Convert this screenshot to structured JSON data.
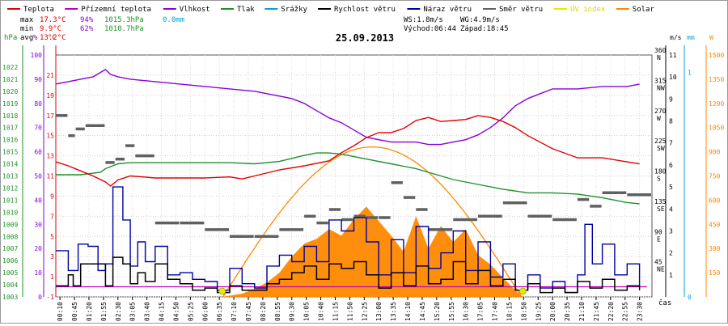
{
  "chart_data": {
    "type": "line",
    "title": "25.09.2013",
    "legend": [
      {
        "label": "Teplota",
        "color": "#e00000"
      },
      {
        "label": "Přízemní teplota",
        "color": "#c000c0"
      },
      {
        "label": "Vlhkost",
        "color": "#8a00d8"
      },
      {
        "label": "Tlak",
        "color": "#20902a"
      },
      {
        "label": "Srážky",
        "color": "#00a0d8"
      },
      {
        "label": "Rychlost větru",
        "color": "#000000"
      },
      {
        "label": "Náraz větru",
        "color": "#0000a0"
      },
      {
        "label": "Směr větru",
        "color": "#606060"
      },
      {
        "label": "UV index",
        "color": "#e8e800"
      },
      {
        "label": "Solar",
        "color": "#ff8800"
      }
    ],
    "stats": {
      "max": {
        "label": "max",
        "temp": "17.3°C",
        "hum": "94%",
        "press": "1015.3hPa",
        "rain": "0.0mm"
      },
      "min": {
        "label": "min",
        "temp": "9.9°C",
        "hum": "62%",
        "press": "1010.7hPa"
      },
      "avg": {
        "label": "avg",
        "temp": "13.2°C"
      }
    },
    "wind_info": {
      "ws": "WS:1.8m/s",
      "wg": "WG:4.9m/s",
      "sunrise": "Východ:06:44",
      "sunset": "Západ:18:45"
    },
    "axes": {
      "pressure": {
        "title": "hPa",
        "range": [
          1003,
          1023
        ],
        "ticks": [
          "1003",
          "1004",
          "1005",
          "1006",
          "1007",
          "1008",
          "1009",
          "1010",
          "1011",
          "1012",
          "1013",
          "1014",
          "1015",
          "1016",
          "1017",
          "1018",
          "1019",
          "1020",
          "1021",
          "1022"
        ]
      },
      "humidity": {
        "title": "%",
        "range": [
          0,
          100
        ],
        "ticks": [
          "0",
          "10",
          "20",
          "30",
          "40",
          "50",
          "60",
          "70",
          "80",
          "90",
          "100"
        ]
      },
      "temperature": {
        "title": "°C",
        "range": [
          -1,
          23
        ],
        "ticks": [
          "-1",
          "1",
          "3",
          "5",
          "7",
          "9",
          "11",
          "13",
          "15",
          "17",
          "19",
          "21"
        ]
      },
      "wind_direction": {
        "labels": [
          {
            "deg": 45,
            "text": "45",
            "dir": "NE"
          },
          {
            "deg": 90,
            "text": "90",
            "dir": "E"
          },
          {
            "deg": 135,
            "text": "135",
            "dir": "SE"
          },
          {
            "deg": 180,
            "text": "180",
            "dir": "S"
          },
          {
            "deg": 225,
            "text": "225",
            "dir": "SW"
          },
          {
            "deg": 270,
            "text": "270",
            "dir": "W"
          },
          {
            "deg": 315,
            "text": "315",
            "dir": "NW"
          },
          {
            "deg": 360,
            "text": "360",
            "dir": "N"
          }
        ]
      },
      "wind_speed": {
        "title": "m/s",
        "range": [
          0,
          11
        ],
        "ticks": [
          "1",
          "2",
          "3",
          "4",
          "5",
          "6",
          "7",
          "8",
          "9",
          "10",
          "11"
        ]
      },
      "rain": {
        "title": "mm",
        "ticks": [
          "0",
          "1"
        ]
      },
      "solar": {
        "title": "W",
        "range": [
          0,
          1500
        ],
        "ticks": [
          "150",
          "300",
          "450",
          "600",
          "750",
          "900",
          "1050",
          "1200",
          "1350",
          "1500"
        ]
      },
      "time": {
        "title": "čas",
        "labels": [
          "00:10",
          "00:45",
          "01:20",
          "01:55",
          "02:30",
          "03:05",
          "03:40",
          "04:15",
          "04:50",
          "05:25",
          "06:00",
          "06:35",
          "07:10",
          "07:45",
          "08:20",
          "08:55",
          "09:30",
          "10:05",
          "10:40",
          "11:15",
          "11:50",
          "12:25",
          "13:00",
          "13:35",
          "14:10",
          "14:45",
          "15:20",
          "15:55",
          "16:30",
          "17:05",
          "17:40",
          "18:15",
          "18:50",
          "19:25",
          "20:00",
          "20:35",
          "21:10",
          "21:45",
          "22:20",
          "22:55",
          "23:30"
        ]
      }
    },
    "series": {
      "temperature": {
        "hours": [
          0,
          0.5,
          1,
          1.5,
          2,
          2.2,
          2.5,
          3,
          3.5,
          4,
          5,
          6,
          7,
          7.5,
          8,
          9,
          10,
          11,
          11.5,
          12,
          12.5,
          13,
          13.5,
          14,
          14.5,
          15,
          15.5,
          16,
          16.5,
          17,
          17.5,
          18,
          18.5,
          19,
          20,
          21,
          22,
          23,
          23.5
        ],
        "values": [
          12.4,
          12.0,
          11.5,
          11.0,
          10.4,
          10.0,
          10.6,
          11.0,
          10.9,
          10.8,
          10.8,
          10.8,
          10.9,
          10.7,
          11.0,
          11.6,
          12.0,
          12.5,
          13.3,
          14.0,
          14.8,
          15.3,
          15.3,
          15.7,
          16.5,
          16.8,
          16.4,
          16.5,
          16.6,
          17.0,
          16.8,
          16.4,
          15.8,
          15.0,
          13.7,
          12.8,
          12.8,
          12.4,
          12.2
        ]
      },
      "humidity": {
        "hours": [
          0,
          0.5,
          1,
          1.5,
          2,
          2.2,
          2.5,
          3,
          4,
          5,
          6,
          7,
          8,
          8.5,
          9,
          9.5,
          10,
          10.5,
          11,
          11.5,
          12,
          12.5,
          13,
          13.5,
          14,
          14.5,
          15,
          15.5,
          16,
          16.5,
          17,
          17.5,
          18,
          18.5,
          19,
          19.5,
          20,
          21,
          22,
          23,
          23.5
        ],
        "values": [
          88,
          89,
          90,
          91,
          94,
          92,
          91,
          90,
          89,
          88,
          87,
          86,
          85,
          84,
          83,
          82,
          80,
          77,
          74,
          72,
          69,
          66,
          65,
          64,
          64,
          64,
          63,
          63,
          64,
          65,
          67,
          70,
          74,
          79,
          82,
          84,
          86,
          86,
          87,
          87,
          88
        ]
      },
      "pressure": {
        "hours": [
          0,
          1,
          1.8,
          2,
          2.5,
          3,
          4,
          5,
          6,
          7,
          8,
          9,
          10,
          10.5,
          11,
          11.5,
          12,
          12.5,
          13,
          13.5,
          14,
          14.5,
          15,
          15.5,
          16,
          17,
          18,
          19,
          20,
          21,
          22,
          22.5,
          23,
          23.5
        ],
        "values": [
          1013.1,
          1013.1,
          1013.3,
          1013.6,
          1014.0,
          1014.1,
          1014.1,
          1014.1,
          1014.1,
          1014.1,
          1014.0,
          1014.2,
          1014.7,
          1014.9,
          1014.9,
          1014.8,
          1014.6,
          1014.4,
          1014.2,
          1014.0,
          1013.8,
          1013.6,
          1013.3,
          1013.0,
          1012.7,
          1012.3,
          1011.9,
          1011.6,
          1011.6,
          1011.5,
          1011.2,
          1011.0,
          1010.8,
          1010.7
        ]
      },
      "ground_temperature": {
        "hours": [
          0,
          23.8
        ],
        "values": [
          0,
          0
        ]
      },
      "wind_speed": {
        "hours": [
          0,
          0.5,
          0.7,
          1,
          1.5,
          2,
          2.3,
          2.7,
          3,
          3.3,
          3.6,
          4,
          4.5,
          5,
          5.5,
          6,
          6.5,
          7,
          7.5,
          8,
          8.5,
          9,
          9.5,
          10,
          10.5,
          11,
          11.5,
          12,
          12.5,
          13,
          13.5,
          14,
          14.5,
          15,
          15.5,
          16,
          16.5,
          17,
          17.5,
          18,
          18.5,
          19,
          19.5,
          20,
          20.5,
          21,
          21.5,
          22,
          22.5,
          23,
          23.5
        ],
        "values": [
          0.5,
          1.0,
          0.5,
          1.5,
          1.5,
          0.5,
          1.8,
          1.5,
          0.6,
          1.1,
          0.7,
          1.5,
          0.8,
          0.6,
          0.3,
          0.4,
          0.2,
          0.5,
          0.3,
          0.3,
          0.6,
          0.8,
          1.1,
          1.4,
          0.8,
          1.5,
          1.3,
          1.6,
          1.0,
          0.4,
          1.1,
          0.5,
          1.4,
          0.6,
          0.8,
          1.6,
          0.6,
          1.2,
          0.5,
          0.8,
          0.3,
          0.6,
          0.2,
          0.4,
          0.2,
          0.7,
          0.4,
          0.8,
          0.3,
          0.5,
          0.3
        ]
      },
      "wind_gust": {
        "hours": [
          0,
          0.5,
          0.9,
          1.3,
          1.7,
          2,
          2.3,
          2.7,
          3,
          3.3,
          3.6,
          4,
          4.5,
          5,
          5.5,
          6,
          6.5,
          7,
          7.5,
          8,
          8.5,
          9,
          9.5,
          10,
          10.5,
          11,
          11.5,
          12,
          12.5,
          13,
          13.5,
          14,
          14.5,
          15,
          15.5,
          16,
          16.5,
          17,
          17.5,
          18,
          18.5,
          19,
          19.5,
          20,
          20.5,
          21,
          21.3,
          21.6,
          22,
          22.5,
          23,
          23.5
        ],
        "values": [
          2.1,
          1.2,
          2.4,
          2.3,
          1.2,
          1.5,
          5.0,
          3.5,
          1.4,
          2.5,
          1.6,
          2.3,
          1.0,
          1.1,
          0.8,
          0.7,
          0.3,
          1.3,
          0.6,
          0.4,
          1.4,
          1.9,
          1.6,
          2.3,
          1.6,
          3.5,
          3.0,
          3.6,
          2.5,
          1.0,
          2.6,
          1.1,
          3.2,
          1.3,
          2.0,
          3.0,
          1.2,
          2.5,
          0.9,
          1.5,
          0.3,
          1.0,
          0.4,
          0.7,
          0.2,
          1.0,
          3.3,
          1.5,
          2.4,
          1.0,
          1.5,
          0.5
        ]
      },
      "wind_direction": {
        "hours": [
          0,
          0.5,
          0.8,
          1.2,
          2,
          2.4,
          2.8,
          3.2,
          4,
          5,
          6,
          7,
          8,
          9,
          10,
          10.5,
          11,
          11.5,
          12,
          12.5,
          13,
          13.5,
          14,
          14.5,
          15,
          16,
          17,
          18,
          19,
          20,
          21,
          21.5,
          22,
          23
        ],
        "values": [
          270,
          240,
          250,
          255,
          200,
          205,
          225,
          210,
          110,
          110,
          100,
          90,
          90,
          100,
          120,
          110,
          130,
          115,
          120,
          118,
          118,
          170,
          148,
          130,
          100,
          115,
          120,
          140,
          120,
          115,
          145,
          135,
          155,
          152
        ]
      },
      "solar": {
        "hours": [
          6.7,
          7.5,
          8,
          8.5,
          9,
          9.5,
          10,
          10.5,
          11,
          11.5,
          12,
          12.5,
          13,
          13.5,
          14,
          14.5,
          15,
          15.5,
          16,
          16.5,
          17,
          17.5,
          18,
          18.5,
          18.8
        ],
        "values": [
          0,
          20,
          50,
          90,
          150,
          250,
          330,
          360,
          420,
          380,
          480,
          560,
          470,
          380,
          280,
          500,
          300,
          440,
          340,
          420,
          260,
          200,
          120,
          40,
          0
        ]
      },
      "clear_sky_solar": {
        "sunrise_hour": 6.73,
        "sunset_hour": 18.75,
        "peak": 930
      },
      "uv_index": {
        "hours": [
          6.7,
          18.8
        ],
        "values": [
          0,
          0
        ]
      }
    }
  }
}
